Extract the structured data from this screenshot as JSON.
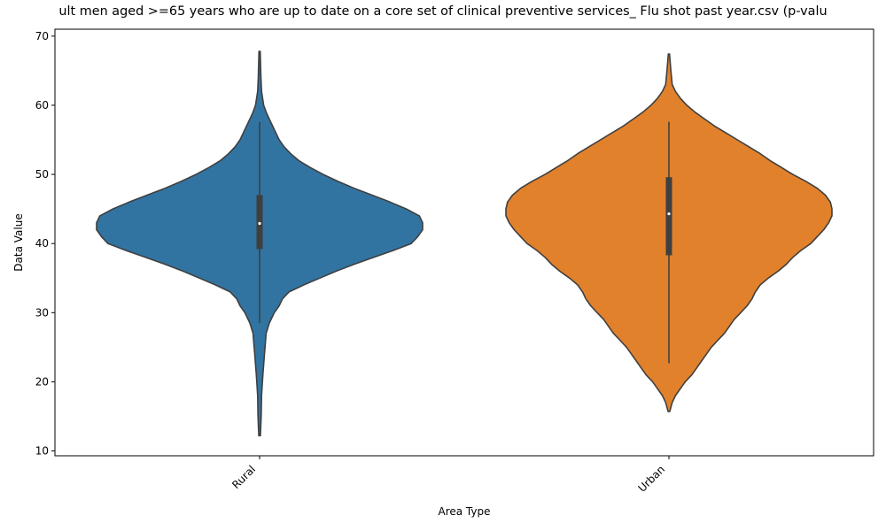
{
  "chart_data": {
    "type": "violin",
    "title": "ult men aged >=65 years who are up to date on a core set of clinical preventive services_ Flu shot past year.csv (p-valu",
    "xlabel": "Area Type",
    "ylabel": "Data Value",
    "ylim": [
      9.3,
      71
    ],
    "yticks": [
      10,
      20,
      30,
      40,
      50,
      60,
      70
    ],
    "categories": [
      "Rural",
      "Urban"
    ],
    "grid": false,
    "legend": "none",
    "series": [
      {
        "category": "Rural",
        "color": "#3274a1",
        "min": 12.2,
        "max": 67.8,
        "box": {
          "q1": 39.2,
          "median": 42.9,
          "q3": 47.0,
          "whisker_low": 28.5,
          "whisker_high": 57.6
        },
        "density": [
          [
            12.2,
            0.005
          ],
          [
            15.0,
            0.01
          ],
          [
            18.0,
            0.012
          ],
          [
            21.0,
            0.02
          ],
          [
            24.0,
            0.03
          ],
          [
            27.0,
            0.04
          ],
          [
            28.5,
            0.06
          ],
          [
            30.0,
            0.09
          ],
          [
            31.0,
            0.12
          ],
          [
            32.0,
            0.14
          ],
          [
            33.0,
            0.18
          ],
          [
            34.0,
            0.27
          ],
          [
            35.0,
            0.37
          ],
          [
            36.0,
            0.47
          ],
          [
            37.0,
            0.58
          ],
          [
            38.0,
            0.7
          ],
          [
            39.0,
            0.82
          ],
          [
            40.0,
            0.93
          ],
          [
            41.0,
            0.97
          ],
          [
            42.0,
            1.0
          ],
          [
            43.0,
            1.0
          ],
          [
            44.0,
            0.98
          ],
          [
            45.0,
            0.9
          ],
          [
            46.0,
            0.8
          ],
          [
            47.0,
            0.69
          ],
          [
            48.0,
            0.58
          ],
          [
            49.0,
            0.48
          ],
          [
            50.0,
            0.39
          ],
          [
            51.0,
            0.31
          ],
          [
            52.0,
            0.24
          ],
          [
            53.0,
            0.19
          ],
          [
            54.0,
            0.15
          ],
          [
            55.0,
            0.12
          ],
          [
            56.0,
            0.1
          ],
          [
            57.0,
            0.08
          ],
          [
            58.0,
            0.06
          ],
          [
            59.0,
            0.04
          ],
          [
            60.0,
            0.025
          ],
          [
            62.0,
            0.012
          ],
          [
            64.0,
            0.008
          ],
          [
            66.0,
            0.006
          ],
          [
            67.8,
            0.004
          ]
        ]
      },
      {
        "category": "Urban",
        "color": "#e1812c",
        "min": 15.7,
        "max": 67.4,
        "box": {
          "q1": 38.3,
          "median": 44.3,
          "q3": 49.6,
          "whisker_low": 22.7,
          "whisker_high": 57.6
        },
        "density": [
          [
            15.7,
            0.005
          ],
          [
            17.0,
            0.02
          ],
          [
            18.0,
            0.04
          ],
          [
            19.0,
            0.07
          ],
          [
            20.0,
            0.1
          ],
          [
            21.0,
            0.14
          ],
          [
            22.0,
            0.17
          ],
          [
            23.0,
            0.2
          ],
          [
            24.0,
            0.23
          ],
          [
            25.0,
            0.26
          ],
          [
            26.0,
            0.3
          ],
          [
            27.0,
            0.34
          ],
          [
            28.0,
            0.37
          ],
          [
            29.0,
            0.4
          ],
          [
            30.0,
            0.44
          ],
          [
            31.0,
            0.48
          ],
          [
            32.0,
            0.51
          ],
          [
            33.0,
            0.53
          ],
          [
            34.0,
            0.56
          ],
          [
            35.0,
            0.61
          ],
          [
            36.0,
            0.67
          ],
          [
            37.0,
            0.72
          ],
          [
            38.0,
            0.76
          ],
          [
            39.0,
            0.81
          ],
          [
            40.0,
            0.87
          ],
          [
            41.0,
            0.91
          ],
          [
            42.0,
            0.95
          ],
          [
            43.0,
            0.98
          ],
          [
            44.0,
            1.0
          ],
          [
            45.0,
            1.0
          ],
          [
            46.0,
            0.99
          ],
          [
            47.0,
            0.96
          ],
          [
            48.0,
            0.91
          ],
          [
            49.0,
            0.84
          ],
          [
            50.0,
            0.76
          ],
          [
            51.0,
            0.69
          ],
          [
            52.0,
            0.62
          ],
          [
            53.0,
            0.56
          ],
          [
            54.0,
            0.49
          ],
          [
            55.0,
            0.42
          ],
          [
            56.0,
            0.35
          ],
          [
            57.0,
            0.28
          ],
          [
            58.0,
            0.22
          ],
          [
            59.0,
            0.16
          ],
          [
            60.0,
            0.11
          ],
          [
            61.0,
            0.07
          ],
          [
            62.0,
            0.04
          ],
          [
            63.0,
            0.02
          ],
          [
            65.0,
            0.012
          ],
          [
            67.4,
            0.004
          ]
        ]
      }
    ]
  }
}
